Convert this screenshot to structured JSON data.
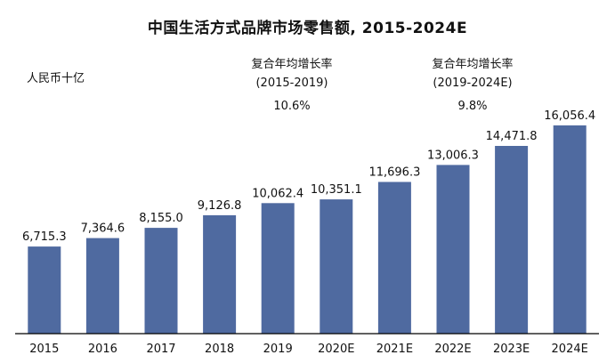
{
  "title": "中国生活方式品牌市场零售额, 2015-2024E",
  "unit": "人民币十亿",
  "cagr": [
    {
      "label": "复合年均增长率",
      "period": "(2015-2019)",
      "value": "10.6%"
    },
    {
      "label": "复合年均增长率",
      "period": "(2019-2024E)",
      "value": "9.8%"
    }
  ],
  "colors": {
    "bar": "#4f6aa0",
    "axis": "#000000"
  },
  "chart_data": {
    "type": "bar",
    "title": "中国生活方式品牌市场零售额, 2015-2024E",
    "xlabel": "",
    "ylabel": "人民币十亿",
    "categories": [
      "2015",
      "2016",
      "2017",
      "2018",
      "2019",
      "2020E",
      "2021E",
      "2022E",
      "2023E",
      "2024E"
    ],
    "values": [
      6715.3,
      7364.6,
      8155.0,
      9126.8,
      10062.4,
      10351.1,
      11696.3,
      13006.3,
      14471.8,
      16056.4
    ],
    "value_labels": [
      "6,715.3",
      "7,364.6",
      "8,155.0",
      "9,126.8",
      "10,062.4",
      "10,351.1",
      "11,696.3",
      "13,006.3",
      "14,471.8",
      "16,056.4"
    ],
    "ylim": [
      0,
      17200
    ],
    "grid": false,
    "legend": "none"
  }
}
